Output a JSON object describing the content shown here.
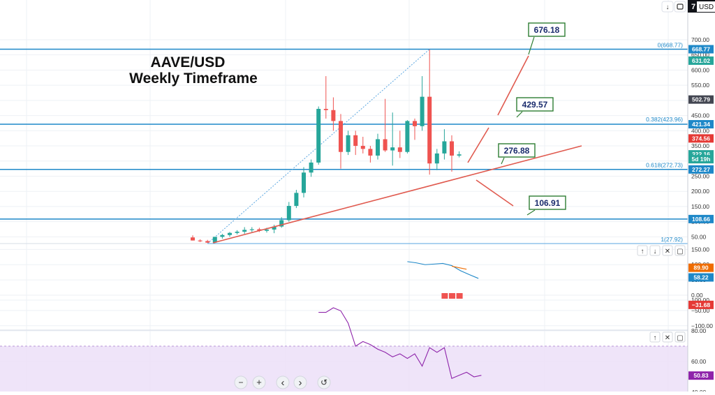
{
  "header": {
    "currency": "USD",
    "ticker_suffix": "7"
  },
  "chart_data": [
    {
      "type": "candlestick",
      "title": "AAVE/USD",
      "subtitle": "Weekly Timeframe",
      "price_axis": {
        "ticks": [
          700,
          650,
          600,
          550,
          500,
          450,
          400,
          350,
          300,
          250,
          200,
          150,
          100,
          50
        ],
        "tick_labels": [
          "700.00",
          "650.00",
          "600.00",
          "550.00",
          "500.00",
          "450.00",
          "400.00",
          "350.00",
          "300.00",
          "250.00",
          "200.00",
          "150.00",
          "100.00",
          "50.00"
        ],
        "range": [
          10,
          740
        ]
      },
      "badges": [
        {
          "label": "668.77",
          "value": 668.77,
          "color": "#1e88c8"
        },
        {
          "label": "631.02",
          "value": 631.02,
          "color": "#26a69a"
        },
        {
          "label": "502.79",
          "value": 502.79,
          "color": "#434651"
        },
        {
          "label": "421.34",
          "value": 421.34,
          "color": "#1e88c8"
        },
        {
          "label": "374.56",
          "value": 374.56,
          "color": "#e53935"
        },
        {
          "label": "322.16",
          "value": 322.16,
          "color": "#26a69a"
        },
        {
          "label": "5d 19h",
          "value": 306,
          "color": "#26a69a"
        },
        {
          "label": "272.27",
          "value": 272.27,
          "color": "#1e88c8"
        },
        {
          "label": "108.66",
          "value": 108.66,
          "color": "#1e88c8"
        }
      ],
      "horizontal_levels": [
        {
          "value": 668.77,
          "color": "#1e88c8"
        },
        {
          "value": 421.34,
          "color": "#1e88c8"
        },
        {
          "value": 272.27,
          "color": "#1e88c8"
        },
        {
          "value": 108.66,
          "color": "#1e88c8"
        }
      ],
      "fib_labels": [
        {
          "label": "0(668.77)",
          "value": 668.77
        },
        {
          "label": "0.382(423.96)",
          "value": 423.96
        },
        {
          "label": "0.618(272.73)",
          "value": 272.73
        },
        {
          "label": "1(27.92)",
          "value": 27.92
        }
      ],
      "callouts": [
        {
          "label": "676.18",
          "value": 676.18
        },
        {
          "label": "429.57",
          "value": 429.57
        },
        {
          "label": "276.88",
          "value": 276.88
        },
        {
          "label": "106.91",
          "value": 106.91
        }
      ],
      "candles": [
        {
          "o": 48,
          "h": 55,
          "l": 38,
          "c": 38
        },
        {
          "o": 38,
          "h": 42,
          "l": 33,
          "c": 36
        },
        {
          "o": 36,
          "h": 40,
          "l": 30,
          "c": 31
        },
        {
          "o": 31,
          "h": 50,
          "l": 29,
          "c": 50
        },
        {
          "o": 50,
          "h": 60,
          "l": 44,
          "c": 56
        },
        {
          "o": 56,
          "h": 66,
          "l": 50,
          "c": 63
        },
        {
          "o": 63,
          "h": 72,
          "l": 58,
          "c": 67
        },
        {
          "o": 67,
          "h": 82,
          "l": 60,
          "c": 73
        },
        {
          "o": 73,
          "h": 82,
          "l": 66,
          "c": 75
        },
        {
          "o": 75,
          "h": 80,
          "l": 66,
          "c": 70
        },
        {
          "o": 70,
          "h": 80,
          "l": 64,
          "c": 74
        },
        {
          "o": 74,
          "h": 90,
          "l": 62,
          "c": 84
        },
        {
          "o": 84,
          "h": 115,
          "l": 80,
          "c": 105
        },
        {
          "o": 105,
          "h": 165,
          "l": 100,
          "c": 152
        },
        {
          "o": 152,
          "h": 205,
          "l": 145,
          "c": 195
        },
        {
          "o": 195,
          "h": 280,
          "l": 180,
          "c": 262
        },
        {
          "o": 262,
          "h": 305,
          "l": 248,
          "c": 295
        },
        {
          "o": 295,
          "h": 480,
          "l": 288,
          "c": 472
        },
        {
          "o": 472,
          "h": 580,
          "l": 440,
          "c": 468
        },
        {
          "o": 468,
          "h": 510,
          "l": 400,
          "c": 432
        },
        {
          "o": 432,
          "h": 455,
          "l": 275,
          "c": 330
        },
        {
          "o": 330,
          "h": 400,
          "l": 320,
          "c": 385
        },
        {
          "o": 385,
          "h": 400,
          "l": 320,
          "c": 350
        },
        {
          "o": 350,
          "h": 380,
          "l": 325,
          "c": 340
        },
        {
          "o": 340,
          "h": 350,
          "l": 295,
          "c": 318
        },
        {
          "o": 318,
          "h": 390,
          "l": 305,
          "c": 372
        },
        {
          "o": 372,
          "h": 505,
          "l": 330,
          "c": 335
        },
        {
          "o": 335,
          "h": 460,
          "l": 285,
          "c": 345
        },
        {
          "o": 345,
          "h": 400,
          "l": 310,
          "c": 330
        },
        {
          "o": 330,
          "h": 435,
          "l": 325,
          "c": 432
        },
        {
          "o": 432,
          "h": 440,
          "l": 370,
          "c": 415
        },
        {
          "o": 415,
          "h": 580,
          "l": 400,
          "c": 512
        },
        {
          "o": 512,
          "h": 668,
          "l": 255,
          "c": 292
        },
        {
          "o": 292,
          "h": 340,
          "l": 270,
          "c": 325
        },
        {
          "o": 325,
          "h": 405,
          "l": 305,
          "c": 365
        },
        {
          "o": 365,
          "h": 385,
          "l": 265,
          "c": 318
        },
        {
          "o": 318,
          "h": 332,
          "l": 312,
          "c": 322
        }
      ]
    },
    {
      "type": "line",
      "name": "MACD panel",
      "axis": {
        "ticks": [
          150,
          100,
          50,
          0,
          -50,
          -100
        ],
        "tick_labels": [
          "150.00",
          "100.00",
          "50.00",
          "0.00",
          "−50.00",
          "−100.00"
        ],
        "range": [
          -110,
          160
        ]
      },
      "badges": [
        {
          "label": "89.90",
          "value": 89.9,
          "color": "#ef6c00"
        },
        {
          "label": "58.22",
          "value": 58.22,
          "color": "#1e88c8"
        },
        {
          "label": "−31.68",
          "value": -31.68,
          "color": "#e53935"
        }
      ],
      "series": [
        {
          "color": "#1e88c8",
          "start": 29,
          "values": [
            110,
            106,
            100,
            102,
            104,
            97,
            80,
            67,
            55
          ]
        },
        {
          "color": "#ef6c00",
          "start": 35,
          "values": [
            95,
            85
          ]
        }
      ],
      "bars": [
        {
          "i": 34,
          "value": -32
        },
        {
          "i": 35,
          "value": -32
        },
        {
          "i": 36,
          "value": -32
        }
      ]
    },
    {
      "type": "line",
      "name": "RSI panel",
      "axis": {
        "ticks": [
          100,
          80,
          60,
          40
        ],
        "tick_labels": [
          "100.00",
          "80.00",
          "60.00",
          "40.00"
        ],
        "range": [
          34,
          108
        ]
      },
      "band": [
        40,
        70
      ],
      "badges": [
        {
          "label": "50.83",
          "value": 50.83,
          "color": "#8e24aa"
        }
      ],
      "series": [
        {
          "color": "#8e24aa",
          "start": 17,
          "values": [
            92,
            92,
            95,
            93,
            85,
            70,
            73,
            71,
            68,
            66,
            63,
            65,
            62,
            65,
            57,
            69,
            66,
            69,
            49,
            51,
            53,
            50,
            51
          ]
        }
      ]
    }
  ],
  "toolbar": {
    "zoom_out": "−",
    "zoom_in": "+",
    "scroll_left": "‹",
    "scroll_right": "›",
    "reset": "↺"
  },
  "pane_controls": {
    "up": "↑",
    "down": "↓",
    "maximize": "▢",
    "close": "✕"
  },
  "icons": [
    "arrow-down-icon",
    "restore-icon",
    "arrow-up-icon",
    "close-icon",
    "maximize-icon",
    "zoom-out-icon",
    "zoom-in-icon",
    "chevron-left-icon",
    "chevron-right-icon",
    "reset-icon"
  ]
}
